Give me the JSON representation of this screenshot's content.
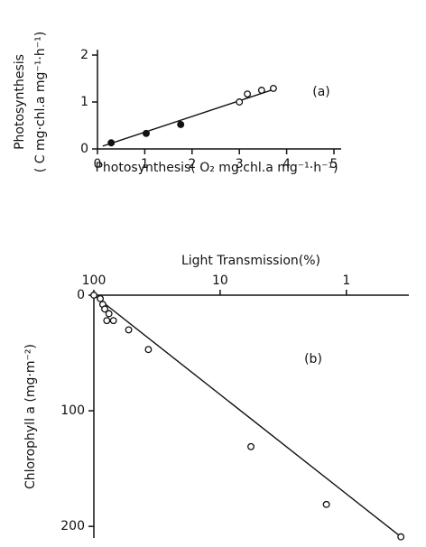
{
  "chart_data": [
    {
      "type": "scatter",
      "panel_label": "(a)",
      "xlabel": "Photosynthesis( O₂ mg.chl.a mg⁻¹·h⁻¹)",
      "ylabel": [
        "Photosynthesis",
        "( C mg·chl.a mg⁻¹·h⁻¹)"
      ],
      "xlim": [
        0,
        5
      ],
      "ylim": [
        0,
        2
      ],
      "xticks": [
        0,
        1,
        2,
        3,
        4,
        5
      ],
      "yticks": [
        0,
        1,
        2
      ],
      "series": [
        {
          "color": "#111111",
          "fill": "#111111",
          "x": [
            0.29,
            1.03,
            1.76
          ],
          "values": [
            0.13,
            0.33,
            0.52
          ]
        },
        {
          "color": "#111111",
          "fill": "#ffffff",
          "x": [
            3.0,
            3.17,
            3.47,
            3.72
          ],
          "values": [
            1.0,
            1.17,
            1.25,
            1.29
          ]
        }
      ],
      "fit": {
        "x": [
          0.11,
          3.76
        ],
        "y": [
          0.06,
          1.28
        ]
      }
    },
    {
      "type": "scatter",
      "panel_label": "(b)",
      "xlabel": "Light Transmission(%)",
      "ylabel": [
        "Chlorophyll a (mg·m⁻²)"
      ],
      "xscale": "log",
      "y_inverted": true,
      "x_axis_side": "top",
      "xlim": [
        100,
        0.32
      ],
      "ylim": [
        0,
        210
      ],
      "xticks": [
        100,
        10,
        1
      ],
      "yticks": [
        0,
        100,
        200
      ],
      "series": [
        {
          "color": "#111111",
          "fill": "#ffffff",
          "x": [
            100,
            89,
            85,
            82,
            76,
            79,
            70,
            53,
            37,
            5.7,
            1.44,
            0.37
          ],
          "values": [
            0,
            3,
            8,
            12,
            16,
            22,
            22,
            30,
            47,
            131,
            181,
            209
          ]
        }
      ],
      "fit": {
        "x": [
          100,
          0.37
        ],
        "y": [
          0,
          209
        ]
      }
    }
  ]
}
